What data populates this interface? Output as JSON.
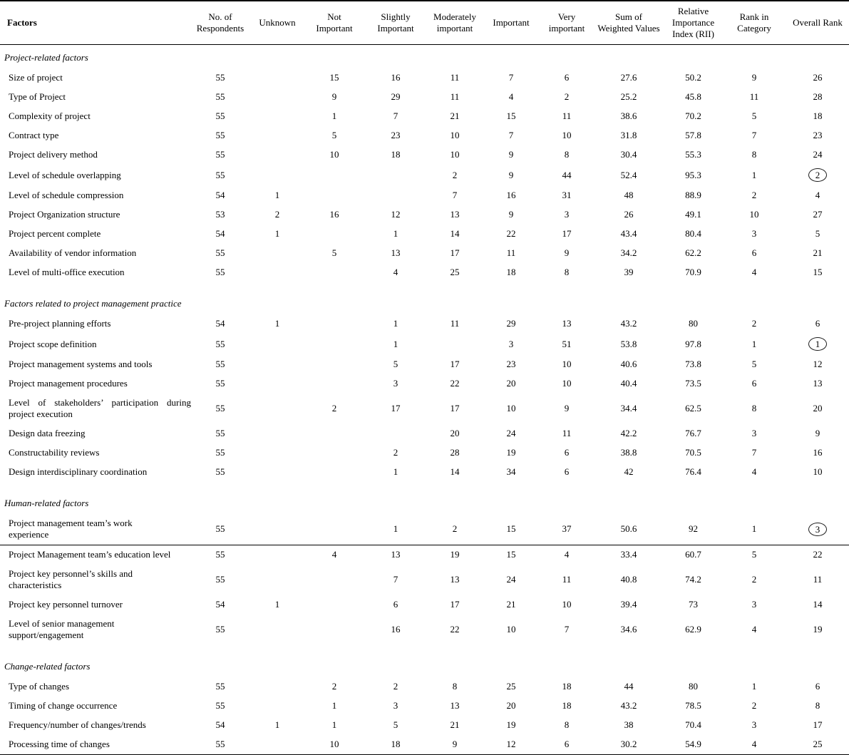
{
  "table": {
    "columns": [
      "Factors",
      "No. of\nRespondents",
      "Unknown",
      "Not\nImportant",
      "Slightly\nImportant",
      "Moderately\nimportant",
      "Important",
      "Very\nimportant",
      "Sum of\nWeighted Values",
      "Relative\nImportance\nIndex (RII)",
      "Rank in\nCategory",
      "Overall Rank"
    ],
    "sections": [
      {
        "title": "Project-related factors",
        "rows": [
          {
            "factor": "Size of project",
            "values": [
              "55",
              "",
              "15",
              "16",
              "11",
              "7",
              "6",
              "27.6",
              "50.2",
              "9",
              "26"
            ]
          },
          {
            "factor": "Type of Project",
            "values": [
              "55",
              "",
              "9",
              "29",
              "11",
              "4",
              "2",
              "25.2",
              "45.8",
              "11",
              "28"
            ]
          },
          {
            "factor": "Complexity of project",
            "values": [
              "55",
              "",
              "1",
              "7",
              "21",
              "15",
              "11",
              "38.6",
              "70.2",
              "5",
              "18"
            ]
          },
          {
            "factor": "Contract type",
            "values": [
              "55",
              "",
              "5",
              "23",
              "10",
              "7",
              "10",
              "31.8",
              "57.8",
              "7",
              "23"
            ]
          },
          {
            "factor": "Project delivery method",
            "values": [
              "55",
              "",
              "10",
              "18",
              "10",
              "9",
              "8",
              "30.4",
              "55.3",
              "8",
              "24"
            ]
          },
          {
            "factor": "Level of schedule overlapping",
            "values": [
              "55",
              "",
              "",
              "",
              "2",
              "9",
              "44",
              "52.4",
              "95.3",
              "1",
              "2"
            ],
            "circled": true
          },
          {
            "factor": "Level of schedule compression",
            "values": [
              "54",
              "1",
              "",
              "",
              "7",
              "16",
              "31",
              "48",
              "88.9",
              "2",
              "4"
            ]
          },
          {
            "factor": "Project Organization structure",
            "values": [
              "53",
              "2",
              "16",
              "12",
              "13",
              "9",
              "3",
              "26",
              "49.1",
              "10",
              "27"
            ]
          },
          {
            "factor": "Project percent complete",
            "values": [
              "54",
              "1",
              "",
              "1",
              "14",
              "22",
              "17",
              "43.4",
              "80.4",
              "3",
              "5"
            ]
          },
          {
            "factor": "Availability of vendor information",
            "values": [
              "55",
              "",
              "5",
              "13",
              "17",
              "11",
              "9",
              "34.2",
              "62.2",
              "6",
              "21"
            ]
          },
          {
            "factor": "Level of multi-office execution",
            "values": [
              "55",
              "",
              "",
              "4",
              "25",
              "18",
              "8",
              "39",
              "70.9",
              "4",
              "15"
            ]
          }
        ]
      },
      {
        "title": "Factors related to project management practice",
        "rows": [
          {
            "factor": "Pre-project planning efforts",
            "values": [
              "54",
              "1",
              "",
              "1",
              "11",
              "29",
              "13",
              "43.2",
              "80",
              "2",
              "6"
            ]
          },
          {
            "factor": "Project scope definition",
            "values": [
              "55",
              "",
              "",
              "1",
              "",
              "3",
              "51",
              "53.8",
              "97.8",
              "1",
              "1"
            ],
            "circled": true
          },
          {
            "factor": "Project management systems and tools",
            "values": [
              "55",
              "",
              "",
              "5",
              "17",
              "23",
              "10",
              "40.6",
              "73.8",
              "5",
              "12"
            ]
          },
          {
            "factor": "Project management procedures",
            "values": [
              "55",
              "",
              "",
              "3",
              "22",
              "20",
              "10",
              "40.4",
              "73.5",
              "6",
              "13"
            ]
          },
          {
            "factor": "Level of stakeholders’ participation during project execution",
            "values": [
              "55",
              "",
              "2",
              "17",
              "17",
              "10",
              "9",
              "34.4",
              "62.5",
              "8",
              "20"
            ],
            "justify": true
          },
          {
            "factor": "Design data freezing",
            "values": [
              "55",
              "",
              "",
              "",
              "20",
              "24",
              "11",
              "42.2",
              "76.7",
              "3",
              "9"
            ]
          },
          {
            "factor": "Constructability reviews",
            "values": [
              "55",
              "",
              "",
              "2",
              "28",
              "19",
              "6",
              "38.8",
              "70.5",
              "7",
              "16"
            ]
          },
          {
            "factor": "Design interdisciplinary coordination",
            "values": [
              "55",
              "",
              "",
              "1",
              "14",
              "34",
              "6",
              "42",
              "76.4",
              "4",
              "10"
            ]
          }
        ]
      },
      {
        "title": "Human-related factors",
        "rows": [
          {
            "factor": "Project management team’s work\nexperience",
            "values": [
              "55",
              "",
              "",
              "1",
              "2",
              "15",
              "37",
              "50.6",
              "92",
              "1",
              "3"
            ],
            "circled": true,
            "divider_after": true
          },
          {
            "factor": "Project Management team’s education level",
            "values": [
              "55",
              "",
              "4",
              "13",
              "19",
              "15",
              "4",
              "33.4",
              "60.7",
              "5",
              "22"
            ]
          },
          {
            "factor": "Project key personnel’s skills and\ncharacteristics",
            "values": [
              "55",
              "",
              "",
              "7",
              "13",
              "24",
              "11",
              "40.8",
              "74.2",
              "2",
              "11"
            ]
          },
          {
            "factor": "Project key personnel turnover",
            "values": [
              "54",
              "1",
              "",
              "6",
              "17",
              "21",
              "10",
              "39.4",
              "73",
              "3",
              "14"
            ]
          },
          {
            "factor": "Level of senior management\nsupport/engagement",
            "values": [
              "55",
              "",
              "",
              "16",
              "22",
              "10",
              "7",
              "34.6",
              "62.9",
              "4",
              "19"
            ]
          }
        ]
      },
      {
        "title": "Change-related factors",
        "rows": [
          {
            "factor": "Type of changes",
            "values": [
              "55",
              "",
              "2",
              "2",
              "8",
              "25",
              "18",
              "44",
              "80",
              "1",
              "6"
            ]
          },
          {
            "factor": "Timing of change occurrence",
            "values": [
              "55",
              "",
              "1",
              "3",
              "13",
              "20",
              "18",
              "43.2",
              "78.5",
              "2",
              "8"
            ]
          },
          {
            "factor": "Frequency/number of changes/trends",
            "values": [
              "54",
              "1",
              "1",
              "5",
              "21",
              "19",
              "8",
              "38",
              "70.4",
              "3",
              "17"
            ]
          },
          {
            "factor": "Processing time of changes",
            "values": [
              "55",
              "",
              "10",
              "18",
              "9",
              "12",
              "6",
              "30.2",
              "54.9",
              "4",
              "25"
            ]
          }
        ]
      }
    ]
  }
}
